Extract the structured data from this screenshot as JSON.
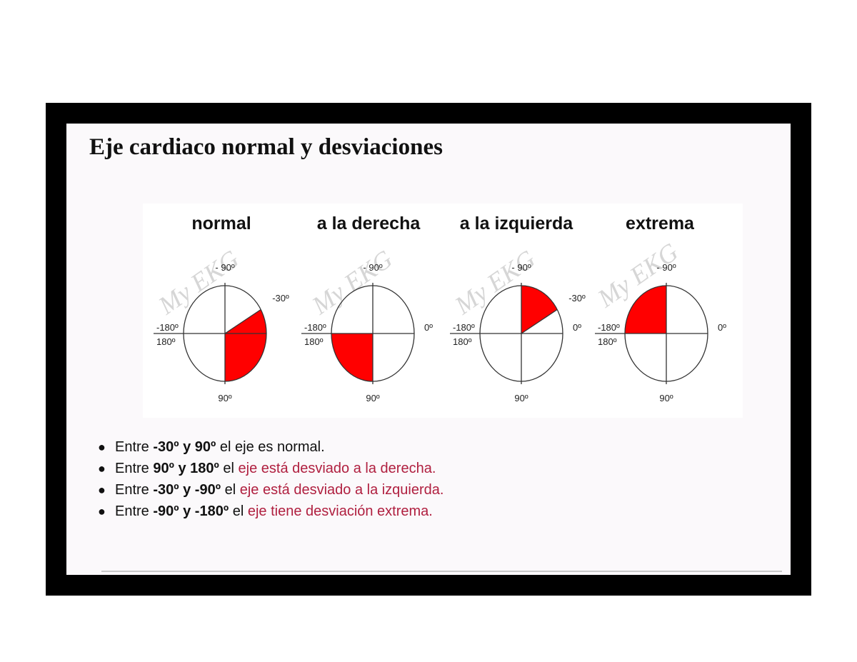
{
  "title": "Eje cardiaco normal y desviaciones",
  "watermark": "My EKG",
  "fill_color": "#ff0000",
  "highlight_color": "#b02040",
  "panels": [
    {
      "title": "normal",
      "labels": {
        "top": "- 90º",
        "bottom": "90º",
        "left_top": "-180º",
        "left_bottom": "180º",
        "right": "",
        "extra": "-30º"
      },
      "sector_deg": [
        -30,
        90
      ]
    },
    {
      "title": "a la derecha",
      "labels": {
        "top": "- 90º",
        "bottom": "90º",
        "left_top": "-180º",
        "left_bottom": "180º",
        "right": "0º",
        "extra": ""
      },
      "sector_deg": [
        90,
        180
      ]
    },
    {
      "title": "a la izquierda",
      "labels": {
        "top": "- 90º",
        "bottom": "90º",
        "left_top": "-180º",
        "left_bottom": "180º",
        "right": "0º",
        "extra": "-30º"
      },
      "sector_deg": [
        -90,
        -30
      ]
    },
    {
      "title": "extrema",
      "labels": {
        "top": "- 90º",
        "bottom": "90º",
        "left_top": "-180º",
        "left_bottom": "180º",
        "right": "0º",
        "extra": ""
      },
      "sector_deg": [
        -180,
        -90
      ]
    }
  ],
  "rules": [
    {
      "pre": "Entre ",
      "bold": "-30º y 90º",
      "mid": " el ",
      "plain_rest": "eje es normal.",
      "hl": ""
    },
    {
      "pre": "Entre ",
      "bold": "90º y 180º",
      "mid": " el ",
      "plain_rest": "",
      "hl": "eje está desviado a la derecha."
    },
    {
      "pre": "Entre ",
      "bold": "-30º y -90º",
      "mid": " el ",
      "plain_rest": "",
      "hl": "eje está desviado a la izquierda."
    },
    {
      "pre": "Entre ",
      "bold": "-90º y -180º",
      "mid": " el ",
      "plain_rest": "",
      "hl": "eje tiene desviación extrema."
    }
  ]
}
